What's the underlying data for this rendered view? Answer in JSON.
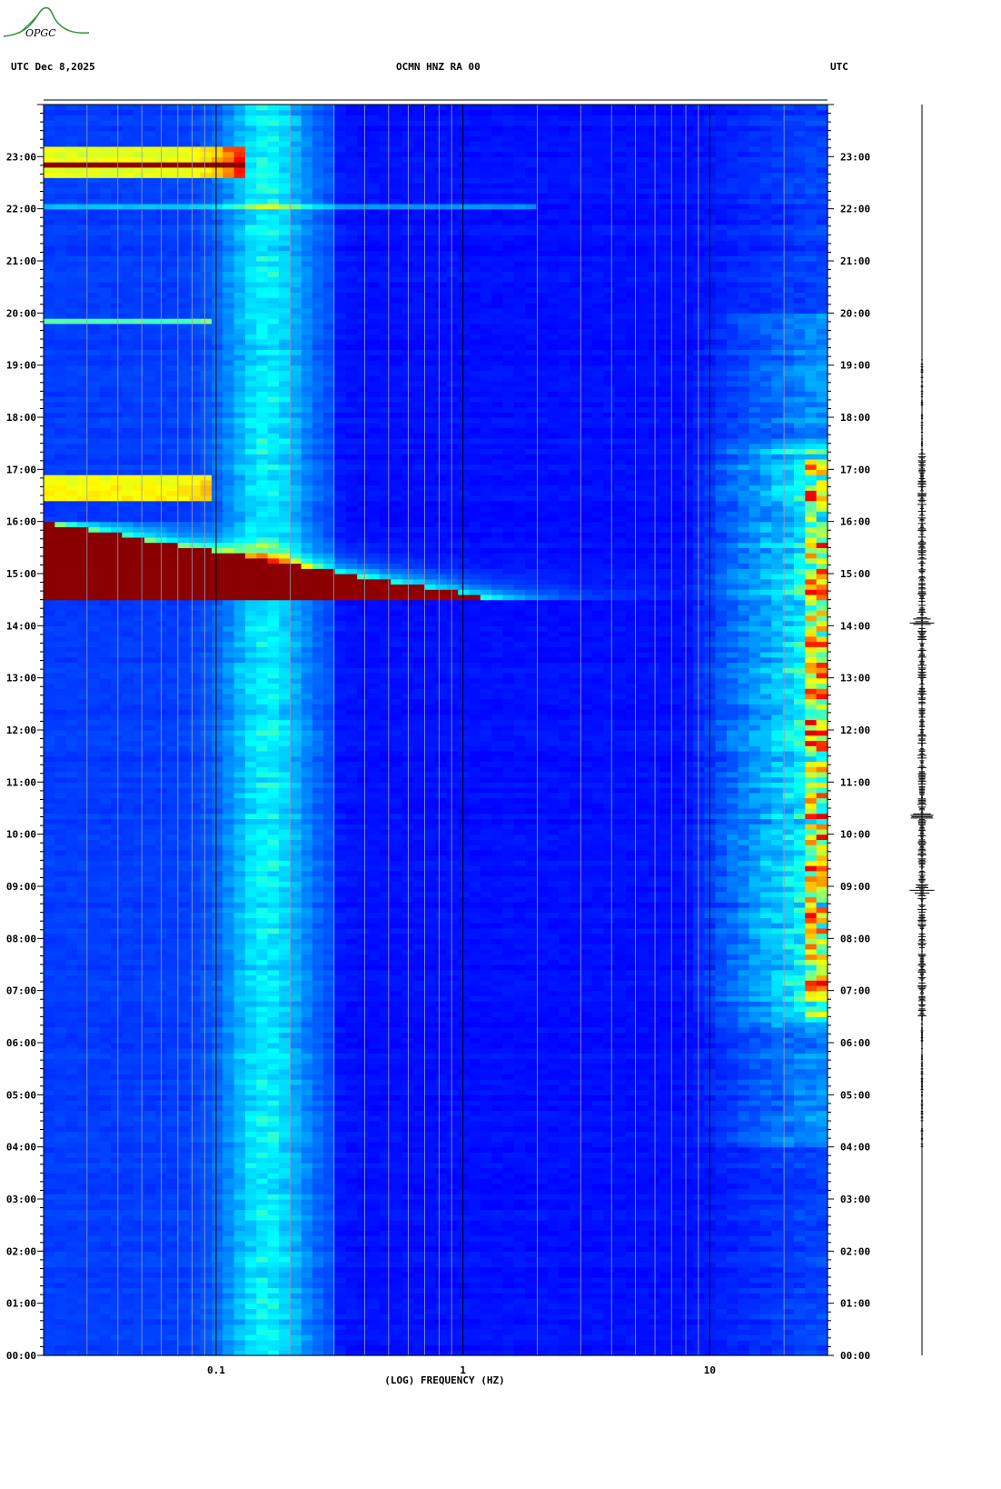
{
  "header": {
    "logo_text": "OPGC",
    "left_label": "UTC  Dec 8,2025",
    "center_label": "OCMN HNZ RA 00",
    "right_label": "UTC"
  },
  "chart_data": {
    "type": "heatmap",
    "title": "OCMN HNZ RA 00",
    "date": "Dec 8,2025",
    "xlabel": "(LOG) FREQUENCY (HZ)",
    "x_scale": "log",
    "xlim": [
      0.02,
      30
    ],
    "x_ticks": [
      {
        "value": 0.1,
        "label": "0.1"
      },
      {
        "value": 1,
        "label": "1"
      },
      {
        "value": 10,
        "label": "10"
      }
    ],
    "ylabel": "UTC",
    "ylim_hours": [
      0,
      24
    ],
    "y_ticks": [
      "00:00",
      "01:00",
      "02:00",
      "03:00",
      "04:00",
      "05:00",
      "06:00",
      "07:00",
      "08:00",
      "09:00",
      "10:00",
      "11:00",
      "12:00",
      "13:00",
      "14:00",
      "15:00",
      "16:00",
      "17:00",
      "18:00",
      "19:00",
      "20:00",
      "21:00",
      "22:00",
      "23:00"
    ],
    "colormap": [
      "#00008b",
      "#0000ff",
      "#0080ff",
      "#00ffff",
      "#ffff00",
      "#ff0000",
      "#8b0000"
    ],
    "features": [
      {
        "name": "microseism band",
        "freq_hz": [
          0.1,
          0.3
        ],
        "hours": [
          0,
          24
        ],
        "level": "medium"
      },
      {
        "name": "broadband event",
        "freq_hz": [
          0.02,
          1.5
        ],
        "hours": [
          14.45,
          16.0
        ],
        "level": "saturated"
      },
      {
        "name": "long-period band",
        "freq_hz": [
          0.02,
          0.1
        ],
        "hours": [
          16.4,
          16.9
        ],
        "level": "high"
      },
      {
        "name": "long-period band",
        "freq_hz": [
          0.02,
          0.1
        ],
        "hours": [
          22.6,
          23.2
        ],
        "level": "saturated"
      },
      {
        "name": "cultural noise",
        "freq_hz": [
          10,
          30
        ],
        "hours": [
          6.6,
          17.3
        ],
        "level": "high"
      }
    ]
  }
}
